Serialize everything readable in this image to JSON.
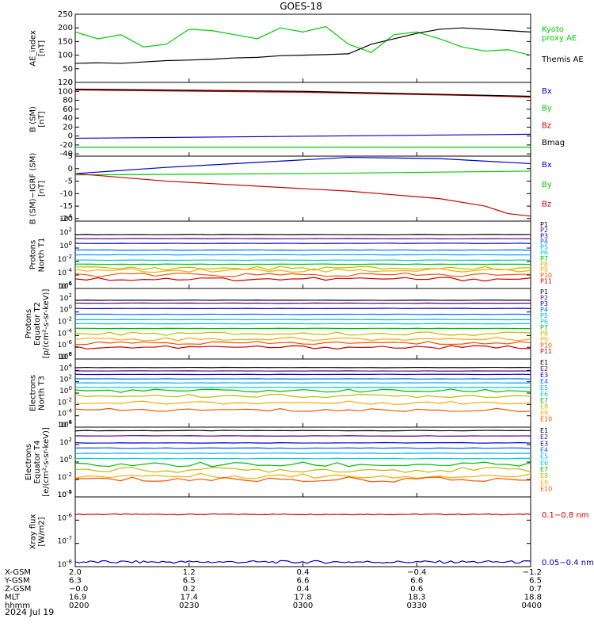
{
  "title": "GOES-18",
  "date": "2024 Jul 19",
  "colors": {
    "black": "#000000",
    "green": "#00cc00",
    "blue": "#0000cc",
    "red": "#cc0000",
    "P": [
      "#000000",
      "#5a0080",
      "#0000cc",
      "#0066ff",
      "#00aaff",
      "#00cccc",
      "#00bb00",
      "#bbbb00",
      "#ffaa00",
      "#ee5500",
      "#cc0000"
    ],
    "E": [
      "#000000",
      "#5a0080",
      "#0000cc",
      "#0066ff",
      "#00aaff",
      "#00cccc",
      "#00bb00",
      "#bbbb00",
      "#ffaa00",
      "#ee5500",
      "#cc0000"
    ]
  },
  "chart_data": [
    {
      "type": "line",
      "ylabel": "AE_index\n[nT]",
      "ylim": [
        0,
        250
      ],
      "yticks": [
        "0",
        "50",
        "100",
        "150",
        "200",
        "250"
      ],
      "series": [
        {
          "name": "Kyoto\nproxy AE",
          "color": "#00cc00",
          "x": [
            0,
            0.05,
            0.1,
            0.15,
            0.2,
            0.25,
            0.3,
            0.35,
            0.4,
            0.45,
            0.5,
            0.55,
            0.6,
            0.65,
            0.7,
            0.75,
            0.8,
            0.85,
            0.9,
            0.95,
            1.0
          ],
          "y": [
            185,
            160,
            175,
            130,
            140,
            195,
            190,
            175,
            160,
            200,
            185,
            205,
            140,
            110,
            175,
            185,
            160,
            130,
            115,
            120,
            100
          ]
        },
        {
          "name": "Themis AE",
          "color": "#000000",
          "x": [
            0,
            0.05,
            0.1,
            0.15,
            0.2,
            0.25,
            0.3,
            0.35,
            0.4,
            0.45,
            0.5,
            0.55,
            0.6,
            0.65,
            0.7,
            0.75,
            0.8,
            0.85,
            0.9,
            0.95,
            1.0
          ],
          "y": [
            70,
            72,
            70,
            75,
            80,
            82,
            85,
            90,
            92,
            98,
            100,
            102,
            105,
            140,
            160,
            180,
            195,
            200,
            195,
            190,
            185
          ]
        }
      ]
    },
    {
      "type": "line",
      "ylabel": "B (SM)\n[nT]",
      "ylim": [
        -45,
        120
      ],
      "yticks": [
        "-40",
        "-20",
        "0",
        "20",
        "40",
        "60",
        "80",
        "100",
        "120"
      ],
      "series": [
        {
          "name": "Bx",
          "color": "#0000cc",
          "x": [
            0,
            1
          ],
          "y": [
            -5,
            4
          ]
        },
        {
          "name": "By",
          "color": "#00cc00",
          "x": [
            0,
            1
          ],
          "y": [
            -25,
            -25
          ]
        },
        {
          "name": "Bz",
          "color": "#cc0000",
          "x": [
            0,
            0.5,
            0.9,
            1.0
          ],
          "y": [
            103,
            98,
            90,
            87
          ]
        },
        {
          "name": "Bmag",
          "color": "#000000",
          "x": [
            0,
            0.5,
            1
          ],
          "y": [
            105,
            100,
            89
          ]
        }
      ]
    },
    {
      "type": "line",
      "ylabel": "B (SM)−IGRF (SM)\n[nT]",
      "ylim": [
        -21,
        5
      ],
      "yticks": [
        "-20",
        "-15",
        "-10",
        "-5",
        "0",
        "5"
      ],
      "series": [
        {
          "name": "Bx",
          "color": "#0000cc",
          "x": [
            0,
            0.2,
            0.4,
            0.6,
            0.8,
            1.0
          ],
          "y": [
            -2,
            0.5,
            2.5,
            4.5,
            4.0,
            2.0
          ]
        },
        {
          "name": "By",
          "color": "#00cc00",
          "x": [
            0,
            0.5,
            1.0
          ],
          "y": [
            -2.5,
            -2.0,
            -1.0
          ]
        },
        {
          "name": "Bz",
          "color": "#cc0000",
          "x": [
            0,
            0.2,
            0.4,
            0.6,
            0.8,
            0.9,
            0.95,
            1.0
          ],
          "y": [
            -2,
            -5,
            -7,
            -9,
            -12,
            -15,
            -18,
            -19
          ]
        }
      ]
    },
    {
      "type": "line",
      "ylabel": "Protons\nNorth T1",
      "log": true,
      "ylim": [
        -6,
        4
      ],
      "yticks": [
        "10^-6",
        "10^-4",
        "10^-2",
        "10^0",
        "10^2",
        "10^4"
      ],
      "labels": [
        "P1",
        "P2",
        "P3",
        "P4",
        "P5",
        "P6",
        "P7",
        "P8",
        "P9",
        "P10",
        "P11"
      ],
      "levels": [
        2.0,
        1.4,
        0.7,
        -0.3,
        -1.0,
        -1.8,
        -2.4,
        -3.0,
        -3.3,
        -4.0,
        -4.6
      ]
    },
    {
      "type": "line",
      "ylabel": "Protons\nEquator T2\n[p/(cm²-s-sr-keV)]",
      "log": true,
      "ylim": [
        -8,
        4
      ],
      "yticks": [
        "10^-8",
        "10^-6",
        "10^-4",
        "10^-2",
        "10^0",
        "10^2",
        "10^4"
      ],
      "labels": [
        "P1",
        "P2",
        "P3",
        "P4",
        "P5",
        "P6",
        "P7",
        "P8",
        "P9",
        "P10",
        "P11"
      ],
      "levels": [
        2.0,
        1.5,
        0.6,
        -0.4,
        -1.3,
        -2.0,
        -2.8,
        -3.7,
        -4.6,
        -5.3,
        -6.0
      ]
    },
    {
      "type": "line",
      "ylabel": "Electrons\nNorth T3",
      "log": true,
      "ylim": [
        -6,
        6
      ],
      "yticks": [
        "10^-6",
        "10^-4",
        "10^-2",
        "10^0",
        "10^2",
        "10^4",
        "10^6"
      ],
      "labels": [
        "E1",
        "E2",
        "E3",
        "E4",
        "E5",
        "E6",
        "E7",
        "E8",
        "E9",
        "E10"
      ],
      "levels": [
        4.5,
        3.9,
        3.3,
        2.5,
        1.8,
        1.0,
        0.4,
        -0.5,
        -1.7,
        -3.0
      ]
    },
    {
      "type": "line",
      "ylabel": "Electrons\nEquator T4\n[e/(cm²-s-sr-keV)]",
      "log": true,
      "ylim": [
        -4,
        4
      ],
      "yticks": [
        "10^-4",
        "10^-2",
        "10^0",
        "10^2",
        "10^4"
      ],
      "labels": [
        "E1",
        "E2",
        "E3",
        "E4",
        "E5",
        "E6",
        "E7",
        "E8",
        "E9",
        "E10"
      ],
      "levels": [
        3.6,
        3.0,
        2.2,
        1.6,
        1.0,
        0.4,
        -0.3,
        -0.9,
        -1.6,
        -2.0
      ]
    },
    {
      "type": "line",
      "ylabel": "Xray flux\n[W/m2]",
      "log": true,
      "ylim": [
        -8,
        -5
      ],
      "yticks": [
        "10^-8",
        "10^-7",
        "10^-6",
        "10^-5"
      ],
      "series": [
        {
          "name": "0.1−0.8 nm",
          "color": "#cc0000",
          "level": -5.75
        },
        {
          "name": "0.05−0.4 nm",
          "color": "#0000cc",
          "level": -7.8
        }
      ]
    }
  ],
  "xaxis": {
    "rows": [
      {
        "label": "X-GSM",
        "values": [
          "2.0",
          "1.2",
          "0.4",
          "−0.4",
          "−1.2"
        ]
      },
      {
        "label": "Y-GSM",
        "values": [
          "6.3",
          "6.5",
          "6.6",
          "6.6",
          "6.5"
        ]
      },
      {
        "label": "Z-GSM",
        "values": [
          "−0.0",
          "0.2",
          "0.4",
          "0.6",
          "0.7"
        ]
      },
      {
        "label": "MLT",
        "values": [
          "16.9",
          "17.4",
          "17.8",
          "18.3",
          "18.8"
        ]
      },
      {
        "label": "hhmm",
        "values": [
          "0200",
          "0230",
          "0300",
          "0330",
          "0400"
        ]
      }
    ]
  }
}
